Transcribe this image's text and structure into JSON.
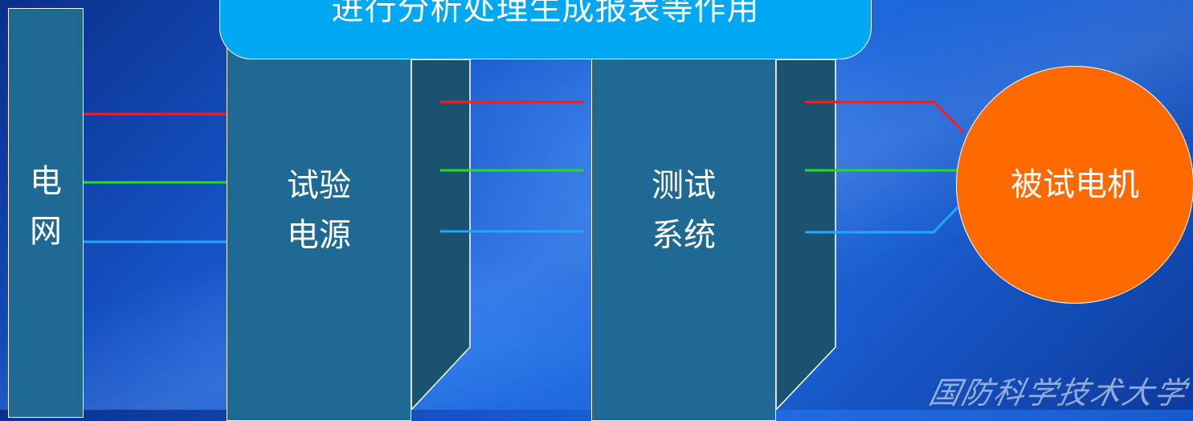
{
  "banner": {
    "text": "进行分析处理生成报表等作用"
  },
  "grid": {
    "label": "电\n网"
  },
  "power_supply": {
    "label": "试验\n电源"
  },
  "test_system": {
    "label": "测试\n系统"
  },
  "motor": {
    "label": "被试电机"
  },
  "watermark": {
    "text": "国防科学技术大学"
  },
  "colors": {
    "phase_a": "#ff1a1a",
    "phase_b": "#22dd22",
    "phase_c": "#1fa8ff",
    "box_fill": "#1e6a94",
    "box_side": "#1a5270",
    "banner_fill": "#00a8f4",
    "motor_fill": "#ff6a00"
  }
}
